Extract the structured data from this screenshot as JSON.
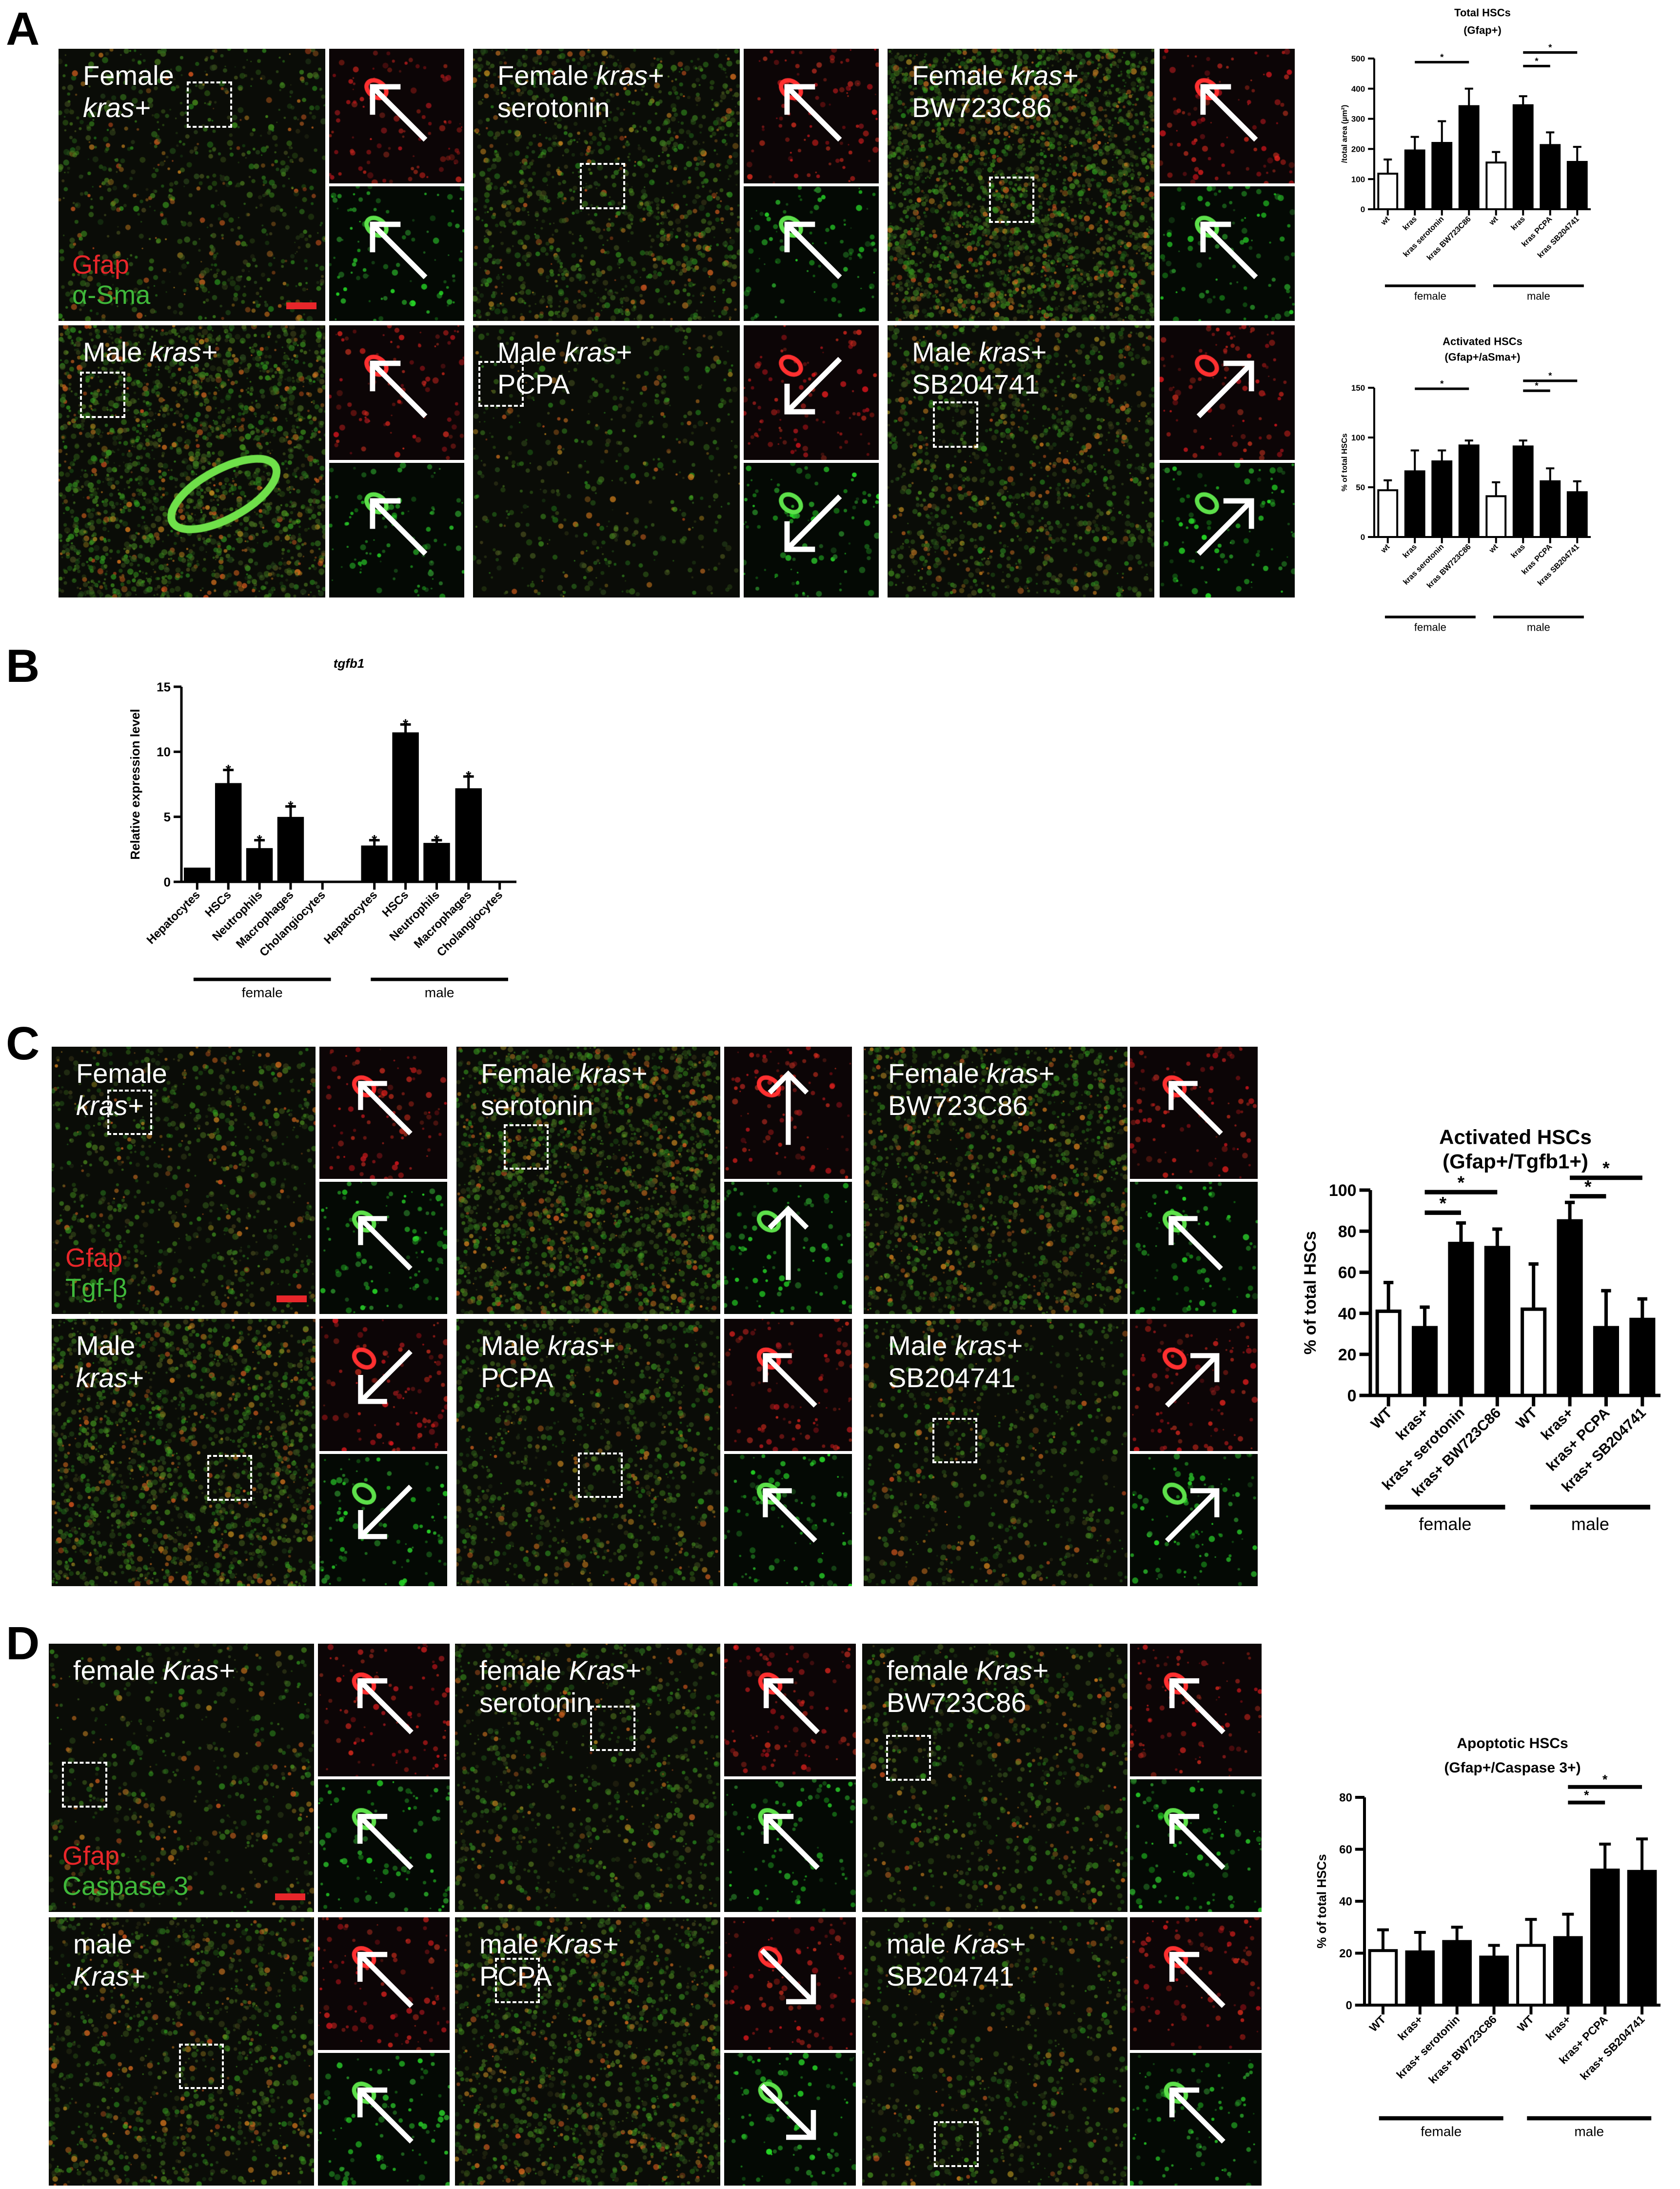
{
  "panels": {
    "A": {
      "letter": "A",
      "legend": [
        {
          "text": "Gfap",
          "color": "#e8262a"
        },
        {
          "text": "α-Sma",
          "color": "#3fb83a"
        }
      ],
      "images": [
        {
          "label": [
            [
              {
                "t": "Female"
              }
            ],
            [
              {
                "t": "kras+",
                "i": true
              }
            ]
          ]
        },
        {
          "label": [
            [
              {
                "t": "Female "
              },
              {
                "t": "kras+",
                "i": true
              }
            ],
            [
              {
                "t": "serotonin"
              }
            ]
          ]
        },
        {
          "label": [
            [
              {
                "t": "Female "
              },
              {
                "t": "kras+",
                "i": true
              }
            ],
            [
              {
                "t": "BW723C86"
              }
            ]
          ]
        },
        {
          "label": [
            [
              {
                "t": "Male "
              },
              {
                "t": "kras+",
                "i": true
              }
            ]
          ]
        },
        {
          "label": [
            [
              {
                "t": "Male "
              },
              {
                "t": "kras+",
                "i": true
              }
            ],
            [
              {
                "t": "PCPA"
              }
            ]
          ]
        },
        {
          "label": [
            [
              {
                "t": "Male "
              },
              {
                "t": "kras+",
                "i": true
              }
            ],
            [
              {
                "t": "SB204741"
              }
            ]
          ]
        }
      ]
    },
    "B": {
      "letter": "B"
    },
    "C": {
      "letter": "C",
      "legend": [
        {
          "text": "Gfap",
          "color": "#e8262a"
        },
        {
          "text": "Tgf-β",
          "color": "#3fb83a"
        }
      ],
      "images": [
        {
          "label": [
            [
              {
                "t": "Female"
              }
            ],
            [
              {
                "t": "kras+",
                "i": true
              }
            ]
          ]
        },
        {
          "label": [
            [
              {
                "t": "Female "
              },
              {
                "t": "kras+",
                "i": true
              }
            ],
            [
              {
                "t": "serotonin"
              }
            ]
          ]
        },
        {
          "label": [
            [
              {
                "t": "Female "
              },
              {
                "t": "kras+",
                "i": true
              }
            ],
            [
              {
                "t": "BW723C86"
              }
            ]
          ]
        },
        {
          "label": [
            [
              {
                "t": "Male"
              }
            ],
            [
              {
                "t": "kras+",
                "i": true
              }
            ]
          ]
        },
        {
          "label": [
            [
              {
                "t": "Male "
              },
              {
                "t": "kras+",
                "i": true
              }
            ],
            [
              {
                "t": "PCPA"
              }
            ]
          ]
        },
        {
          "label": [
            [
              {
                "t": "Male "
              },
              {
                "t": "kras+",
                "i": true
              }
            ],
            [
              {
                "t": "SB204741"
              }
            ]
          ]
        }
      ]
    },
    "D": {
      "letter": "D",
      "legend": [
        {
          "text": "Gfap",
          "color": "#e8262a"
        },
        {
          "text": "Caspase 3",
          "color": "#3fb83a"
        }
      ],
      "images": [
        {
          "label": [
            [
              {
                "t": "female "
              },
              {
                "t": "Kras+",
                "i": true
              }
            ]
          ]
        },
        {
          "label": [
            [
              {
                "t": "female "
              },
              {
                "t": "Kras+",
                "i": true
              }
            ],
            [
              {
                "t": "serotonin"
              }
            ]
          ]
        },
        {
          "label": [
            [
              {
                "t": "female "
              },
              {
                "t": "Kras+",
                "i": true
              }
            ],
            [
              {
                "t": "BW723C86"
              }
            ]
          ]
        },
        {
          "label": [
            [
              {
                "t": "male"
              }
            ],
            [
              {
                "t": "Kras+",
                "i": true
              }
            ]
          ]
        },
        {
          "label": [
            [
              {
                "t": "male "
              },
              {
                "t": "Kras+",
                "i": true
              }
            ],
            [
              {
                "t": "PCPA"
              }
            ]
          ]
        },
        {
          "label": [
            [
              {
                "t": "male "
              },
              {
                "t": "Kras+",
                "i": true
              }
            ],
            [
              {
                "t": "SB204741"
              }
            ]
          ]
        }
      ]
    }
  },
  "chart_data": [
    {
      "id": "A-total",
      "type": "bar",
      "title": [
        "Total HSCs",
        "(Gfap+)"
      ],
      "ylabel": "/total area (µm²)",
      "ylim": [
        0,
        500
      ],
      "yticks": [
        0,
        100,
        200,
        300,
        400,
        500
      ],
      "categories": [
        "wt",
        "kras",
        "kras serotonin",
        "kras BW723C86",
        "wt",
        "kras",
        "kras PCPA",
        "kras SB204741"
      ],
      "values": [
        118,
        195,
        220,
        342,
        155,
        345,
        213,
        157
      ],
      "errors": [
        47,
        45,
        72,
        58,
        35,
        30,
        42,
        50
      ],
      "bar_styles": [
        "open",
        "filled",
        "filled",
        "filled",
        "open",
        "filled",
        "filled",
        "filled"
      ],
      "groups": [
        {
          "label": "female",
          "from": 0,
          "to": 3
        },
        {
          "label": "male",
          "from": 4,
          "to": 7
        }
      ],
      "significance": [
        {
          "from": 1,
          "to": 3,
          "y": 488,
          "label": "*"
        },
        {
          "from": 5,
          "to": 6,
          "y": 475,
          "label": "*"
        },
        {
          "from": 5,
          "to": 7,
          "y": 520,
          "label": "*"
        }
      ]
    },
    {
      "id": "A-activated",
      "type": "bar",
      "title": [
        "Activated HSCs",
        "(Gfap+/aSma+)"
      ],
      "ylabel": "% of total HSCs",
      "ylim": [
        0,
        150
      ],
      "yticks": [
        0,
        50,
        100,
        150
      ],
      "categories": [
        "wt",
        "kras",
        "kras serotonin",
        "kras BW723C86",
        "wt",
        "kras",
        "kras PCPA",
        "kras SB204741"
      ],
      "values": [
        47,
        66,
        76,
        92,
        41,
        91,
        56,
        45
      ],
      "errors": [
        10,
        21,
        11,
        5,
        14,
        6,
        13,
        11
      ],
      "bar_styles": [
        "open",
        "filled",
        "filled",
        "filled",
        "open",
        "filled",
        "filled",
        "filled"
      ],
      "groups": [
        {
          "label": "female",
          "from": 0,
          "to": 3
        },
        {
          "label": "male",
          "from": 4,
          "to": 7
        }
      ],
      "significance": [
        {
          "from": 1,
          "to": 3,
          "y": 149,
          "label": "*"
        },
        {
          "from": 5,
          "to": 6,
          "y": 147,
          "label": "*"
        },
        {
          "from": 5,
          "to": 7,
          "y": 157,
          "label": "*"
        }
      ]
    },
    {
      "id": "B-tgfb1",
      "type": "bar",
      "title": [
        "tgfb1"
      ],
      "title_italic": true,
      "ylabel": "Relative expression level",
      "ylim": [
        0,
        15
      ],
      "yticks": [
        0,
        5,
        10,
        15
      ],
      "categories": [
        "Hepatocytes",
        "HSCs",
        "Neutrophils",
        "Macrophages",
        "Cholangiocytes",
        "Hepatocytes",
        "HSCs",
        "Neutrophils",
        "Macrophages",
        "Cholangiocytes"
      ],
      "values": [
        1.0,
        7.5,
        2.5,
        4.9,
        0,
        2.7,
        11.4,
        2.9,
        7.1,
        0
      ],
      "errors": [
        0,
        1.1,
        0.7,
        0.9,
        0,
        0.5,
        0.7,
        0.3,
        1.0,
        0
      ],
      "bar_styles": [
        "filled",
        "filled",
        "filled",
        "filled",
        "filled",
        "filled",
        "filled",
        "filled",
        "filled",
        "filled"
      ],
      "stars": [
        false,
        true,
        true,
        true,
        false,
        true,
        true,
        true,
        true,
        false
      ],
      "groups": [
        {
          "label": "female",
          "from": 0,
          "to": 4
        },
        {
          "label": "male",
          "from": 5,
          "to": 9
        }
      ],
      "significance": []
    },
    {
      "id": "C-activated",
      "type": "bar",
      "title": [
        "Activated HSCs",
        "(Gfap+/Tgfb1+)"
      ],
      "ylabel": "% of total HSCs",
      "ylim": [
        0,
        100
      ],
      "yticks": [
        0,
        20,
        40,
        60,
        80,
        100
      ],
      "categories": [
        "WT",
        "kras+",
        "kras+ serotonin",
        "kras+ BW723C86",
        "WT",
        "kras+",
        "kras+ PCPA",
        "kras+ SB204741"
      ],
      "values": [
        41,
        33,
        74,
        72,
        42,
        85,
        33,
        37
      ],
      "errors": [
        14,
        10,
        10,
        9,
        22,
        9,
        18,
        10
      ],
      "bar_styles": [
        "open",
        "filled",
        "filled",
        "filled",
        "open",
        "filled",
        "filled",
        "filled"
      ],
      "groups": [
        {
          "label": "female",
          "from": 0,
          "to": 3
        },
        {
          "label": "male",
          "from": 4,
          "to": 7
        }
      ],
      "significance": [
        {
          "from": 1,
          "to": 2,
          "y": 89,
          "label": "*"
        },
        {
          "from": 1,
          "to": 3,
          "y": 99,
          "label": "*"
        },
        {
          "from": 5,
          "to": 6,
          "y": 97,
          "label": "*"
        },
        {
          "from": 5,
          "to": 7,
          "y": 106,
          "label": "*"
        }
      ]
    },
    {
      "id": "D-apoptotic",
      "type": "bar",
      "title": [
        "Apoptotic HSCs",
        "(Gfap+/Caspase 3+)"
      ],
      "ylabel": "% of total HSCs",
      "ylim": [
        0,
        80
      ],
      "yticks": [
        0,
        20,
        40,
        60,
        80
      ],
      "categories": [
        "WT",
        "kras+",
        "kras+ serotonin",
        "kras+ BW723C86",
        "WT",
        "kras+",
        "kras+ PCPA",
        "kras+ SB204741"
      ],
      "values": [
        21,
        20.5,
        24.5,
        18.5,
        23,
        26,
        52,
        51.5
      ],
      "errors": [
        8,
        7.5,
        5.5,
        4.5,
        10,
        9,
        10,
        12.5
      ],
      "bar_styles": [
        "open",
        "filled",
        "filled",
        "filled",
        "open",
        "filled",
        "filled",
        "filled"
      ],
      "groups": [
        {
          "label": "female",
          "from": 0,
          "to": 3
        },
        {
          "label": "male",
          "from": 4,
          "to": 7
        }
      ],
      "significance": [
        {
          "from": 5,
          "to": 6,
          "y": 78,
          "label": "*"
        },
        {
          "from": 5,
          "to": 7,
          "y": 84,
          "label": "*"
        }
      ]
    }
  ]
}
